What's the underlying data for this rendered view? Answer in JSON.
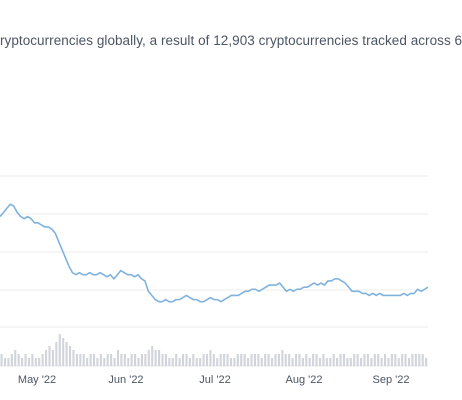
{
  "summary": {
    "text": "ryptocurrencies globally, a result of 12,903 cryptocurrencies tracked across 6"
  },
  "chart_data": {
    "type": "line",
    "title": "",
    "xlabel": "",
    "ylabel": "",
    "x_tick_labels": [
      "May '22",
      "Jun '22",
      "Jul '22",
      "Aug '22",
      "Sep '22"
    ],
    "grid": true,
    "line_color": "#7fb2dd",
    "volume_color": "#d1d5db",
    "series": [
      {
        "values": [
          1.0,
          1.02,
          1.04,
          1.06,
          1.05,
          1.02,
          1.0,
          0.99,
          1.0,
          0.99,
          0.97,
          0.97,
          0.96,
          0.95,
          0.95,
          0.94,
          0.92,
          0.88,
          0.84,
          0.8,
          0.76,
          0.73,
          0.72,
          0.73,
          0.72,
          0.72,
          0.73,
          0.72,
          0.72,
          0.73,
          0.72,
          0.71,
          0.72,
          0.7,
          0.72,
          0.74,
          0.73,
          0.72,
          0.72,
          0.71,
          0.72,
          0.7,
          0.69,
          0.64,
          0.62,
          0.6,
          0.59,
          0.59,
          0.6,
          0.59,
          0.59,
          0.6,
          0.6,
          0.61,
          0.62,
          0.61,
          0.6,
          0.6,
          0.59,
          0.59,
          0.6,
          0.61,
          0.6,
          0.6,
          0.59,
          0.6,
          0.61,
          0.62,
          0.62,
          0.62,
          0.63,
          0.64,
          0.64,
          0.65,
          0.65,
          0.64,
          0.65,
          0.66,
          0.67,
          0.67,
          0.67,
          0.68,
          0.66,
          0.64,
          0.65,
          0.64,
          0.65,
          0.65,
          0.66,
          0.66,
          0.67,
          0.68,
          0.67,
          0.68,
          0.67,
          0.69,
          0.69,
          0.7,
          0.7,
          0.69,
          0.68,
          0.66,
          0.64,
          0.64,
          0.64,
          0.63,
          0.63,
          0.62,
          0.63,
          0.62,
          0.63,
          0.62,
          0.62,
          0.62,
          0.62,
          0.62,
          0.62,
          0.63,
          0.62,
          0.63,
          0.63,
          0.65,
          0.64,
          0.65,
          0.66
        ]
      }
    ],
    "volume": [
      3,
      2,
      2,
      3,
      4,
      3,
      2,
      3,
      2,
      3,
      2,
      2,
      3,
      4,
      5,
      4,
      6,
      8,
      7,
      6,
      5,
      4,
      3,
      3,
      3,
      2,
      3,
      3,
      2,
      3,
      2,
      3,
      3,
      2,
      4,
      3,
      3,
      2,
      3,
      3,
      2,
      3,
      3,
      4,
      5,
      4,
      4,
      3,
      3,
      2,
      2,
      3,
      2,
      3,
      3,
      2,
      3,
      2,
      2,
      3,
      3,
      4,
      3,
      2,
      3,
      3,
      3,
      2,
      2,
      3,
      3,
      3,
      2,
      3,
      3,
      3,
      2,
      3,
      3,
      2,
      3,
      3,
      4,
      3,
      3,
      2,
      3,
      3,
      2,
      3,
      2,
      3,
      3,
      2,
      3,
      2,
      2,
      3,
      2,
      3,
      3,
      2,
      2,
      3,
      3,
      2,
      3,
      3,
      2,
      3,
      3,
      2,
      3,
      2,
      3,
      3,
      2,
      3,
      3,
      2,
      3,
      3,
      3,
      3,
      2
    ]
  }
}
